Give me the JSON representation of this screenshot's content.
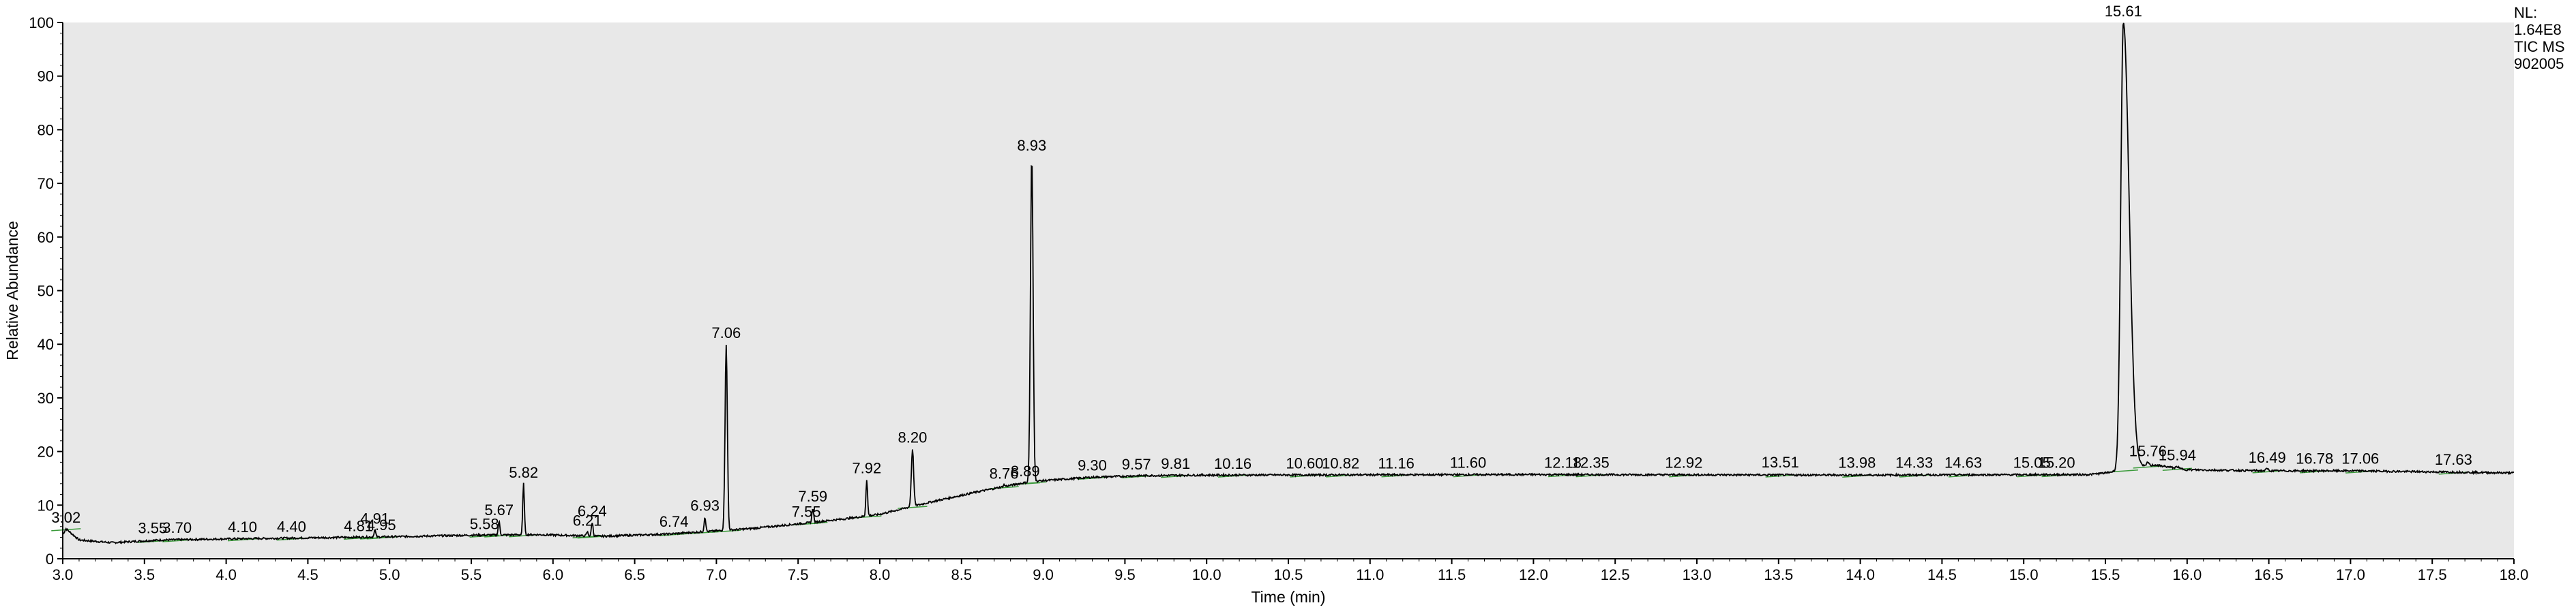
{
  "chart_data": {
    "type": "line",
    "title": "",
    "xlabel": "Time (min)",
    "ylabel": "Relative Abundance",
    "xlim": [
      3.0,
      18.0
    ],
    "ylim": [
      0,
      100
    ],
    "x_ticks": [
      "3.0",
      "3.5",
      "4.0",
      "4.5",
      "5.0",
      "5.5",
      "6.0",
      "6.5",
      "7.0",
      "7.5",
      "8.0",
      "8.5",
      "9.0",
      "9.5",
      "10.0",
      "10.5",
      "11.0",
      "11.5",
      "12.0",
      "12.5",
      "13.0",
      "13.5",
      "14.0",
      "14.5",
      "15.0",
      "15.5",
      "16.0",
      "16.5",
      "17.0",
      "17.5",
      "18.0"
    ],
    "y_ticks": [
      "0",
      "10",
      "20",
      "30",
      "40",
      "50",
      "60",
      "70",
      "80",
      "90",
      "100"
    ],
    "grid": false,
    "background": "#e8e8e8",
    "trace_color": "#000000",
    "integration_mark_color": "#3a9a3a",
    "side_note": [
      "NL:",
      "1.64E8",
      "TIC MS",
      "902005"
    ],
    "baseline": [
      [
        3.0,
        4.5
      ],
      [
        3.02,
        5.6
      ],
      [
        3.1,
        3.5
      ],
      [
        3.3,
        3.0
      ],
      [
        3.6,
        3.5
      ],
      [
        4.0,
        3.7
      ],
      [
        4.5,
        3.9
      ],
      [
        5.0,
        4.1
      ],
      [
        5.5,
        4.4
      ],
      [
        5.9,
        4.5
      ],
      [
        6.3,
        4.2
      ],
      [
        6.7,
        4.6
      ],
      [
        7.0,
        5.2
      ],
      [
        7.2,
        5.6
      ],
      [
        7.5,
        6.5
      ],
      [
        7.8,
        7.5
      ],
      [
        8.0,
        8.3
      ],
      [
        8.3,
        10.5
      ],
      [
        8.6,
        12.5
      ],
      [
        8.85,
        14.0
      ],
      [
        8.97,
        14.5
      ],
      [
        9.3,
        15.2
      ],
      [
        9.6,
        15.5
      ],
      [
        10.0,
        15.6
      ],
      [
        12.0,
        15.7
      ],
      [
        14.0,
        15.6
      ],
      [
        15.4,
        15.7
      ],
      [
        15.5,
        16.0
      ],
      [
        15.8,
        17.5
      ],
      [
        16.0,
        16.6
      ],
      [
        16.5,
        16.4
      ],
      [
        17.0,
        16.4
      ],
      [
        17.5,
        16.2
      ],
      [
        18.0,
        16.0
      ]
    ],
    "peaks": [
      {
        "rt": 3.02,
        "height": 5.6,
        "label": "3.02"
      },
      {
        "rt": 3.55,
        "height": 3.6,
        "label": "3.55"
      },
      {
        "rt": 3.7,
        "height": 3.7,
        "label": "3.70"
      },
      {
        "rt": 4.1,
        "height": 3.8,
        "label": "4.10"
      },
      {
        "rt": 4.4,
        "height": 3.9,
        "label": "4.40"
      },
      {
        "rt": 4.81,
        "height": 4.0,
        "label": "4.81"
      },
      {
        "rt": 4.91,
        "height": 5.4,
        "label": "4.91"
      },
      {
        "rt": 4.95,
        "height": 4.2,
        "label": "4.95"
      },
      {
        "rt": 5.58,
        "height": 4.4,
        "label": "5.58"
      },
      {
        "rt": 5.67,
        "height": 7.0,
        "label": "5.67"
      },
      {
        "rt": 5.82,
        "height": 14.0,
        "label": "5.82"
      },
      {
        "rt": 6.21,
        "height": 5.0,
        "label": "6.21"
      },
      {
        "rt": 6.24,
        "height": 6.8,
        "label": "6.24"
      },
      {
        "rt": 6.74,
        "height": 4.8,
        "label": "6.74"
      },
      {
        "rt": 6.93,
        "height": 7.8,
        "label": "6.93"
      },
      {
        "rt": 7.06,
        "height": 40.0,
        "label": "7.06"
      },
      {
        "rt": 7.55,
        "height": 6.7,
        "label": "7.55"
      },
      {
        "rt": 7.59,
        "height": 9.5,
        "label": "7.59"
      },
      {
        "rt": 7.92,
        "height": 14.8,
        "label": "7.92"
      },
      {
        "rt": 8.2,
        "height": 20.5,
        "label": "8.20"
      },
      {
        "rt": 8.76,
        "height": 13.8,
        "label": "8.76"
      },
      {
        "rt": 8.89,
        "height": 14.2,
        "label": "8.89"
      },
      {
        "rt": 8.93,
        "height": 75.0,
        "label": "8.93"
      },
      {
        "rt": 9.3,
        "height": 15.3,
        "label": "9.30"
      },
      {
        "rt": 9.57,
        "height": 15.5,
        "label": "9.57"
      },
      {
        "rt": 9.81,
        "height": 15.6,
        "label": "9.81"
      },
      {
        "rt": 10.16,
        "height": 15.6,
        "label": "10.16"
      },
      {
        "rt": 10.6,
        "height": 15.7,
        "label": "10.60"
      },
      {
        "rt": 10.82,
        "height": 15.7,
        "label": "10.82"
      },
      {
        "rt": 11.16,
        "height": 15.7,
        "label": "11.16"
      },
      {
        "rt": 11.6,
        "height": 15.8,
        "label": "11.60"
      },
      {
        "rt": 12.18,
        "height": 15.8,
        "label": "12.18"
      },
      {
        "rt": 12.35,
        "height": 15.8,
        "label": "12.35"
      },
      {
        "rt": 12.92,
        "height": 15.8,
        "label": "12.92"
      },
      {
        "rt": 13.51,
        "height": 15.9,
        "label": "13.51"
      },
      {
        "rt": 13.98,
        "height": 15.8,
        "label": "13.98"
      },
      {
        "rt": 14.33,
        "height": 15.8,
        "label": "14.33"
      },
      {
        "rt": 14.63,
        "height": 15.8,
        "label": "14.63"
      },
      {
        "rt": 15.05,
        "height": 15.8,
        "label": "15.05"
      },
      {
        "rt": 15.2,
        "height": 15.8,
        "label": "15.20"
      },
      {
        "rt": 15.61,
        "height": 100.0,
        "label": "15.61"
      },
      {
        "rt": 15.76,
        "height": 18.0,
        "label": "15.76"
      },
      {
        "rt": 15.94,
        "height": 17.2,
        "label": "15.94"
      },
      {
        "rt": 16.49,
        "height": 16.8,
        "label": "16.49"
      },
      {
        "rt": 16.78,
        "height": 16.6,
        "label": "16.78"
      },
      {
        "rt": 17.06,
        "height": 16.6,
        "label": "17.06"
      },
      {
        "rt": 17.63,
        "height": 16.4,
        "label": "17.63"
      }
    ]
  }
}
